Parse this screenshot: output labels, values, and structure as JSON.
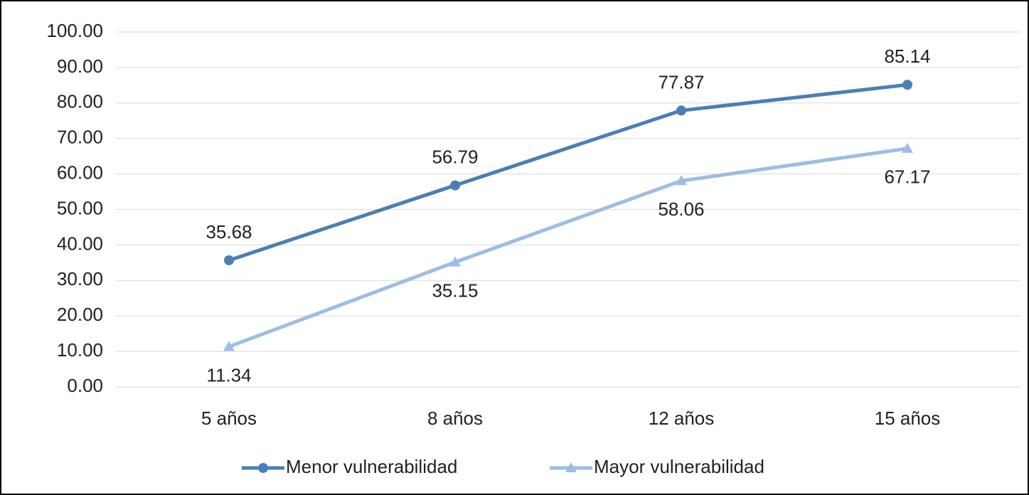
{
  "chart_data": {
    "type": "line",
    "categories": [
      "5 años",
      "8 años",
      "12 años",
      "15 años"
    ],
    "series": [
      {
        "name": "Menor vulnerabilidad",
        "color": "#4a7fb5",
        "marker": "circle",
        "values": [
          35.68,
          56.79,
          77.87,
          85.14
        ]
      },
      {
        "name": "Mayor vulnerabilidad",
        "color": "#9dbde3",
        "marker": "triangle",
        "values": [
          11.34,
          35.15,
          58.06,
          67.17
        ]
      }
    ],
    "ylim": [
      0,
      100
    ],
    "yticks": [
      {
        "value": 0,
        "label": "0.00"
      },
      {
        "value": 10,
        "label": "10.00"
      },
      {
        "value": 20,
        "label": "20.00"
      },
      {
        "value": 30,
        "label": "30.00"
      },
      {
        "value": 40,
        "label": "40.00"
      },
      {
        "value": 50,
        "label": "50.00"
      },
      {
        "value": 60,
        "label": "60.00"
      },
      {
        "value": 70,
        "label": "70.00"
      },
      {
        "value": 80,
        "label": "80.00"
      },
      {
        "value": 90,
        "label": "90.00"
      },
      {
        "value": 100,
        "label": "100.00"
      }
    ],
    "grid": true,
    "legend": "bottom"
  }
}
